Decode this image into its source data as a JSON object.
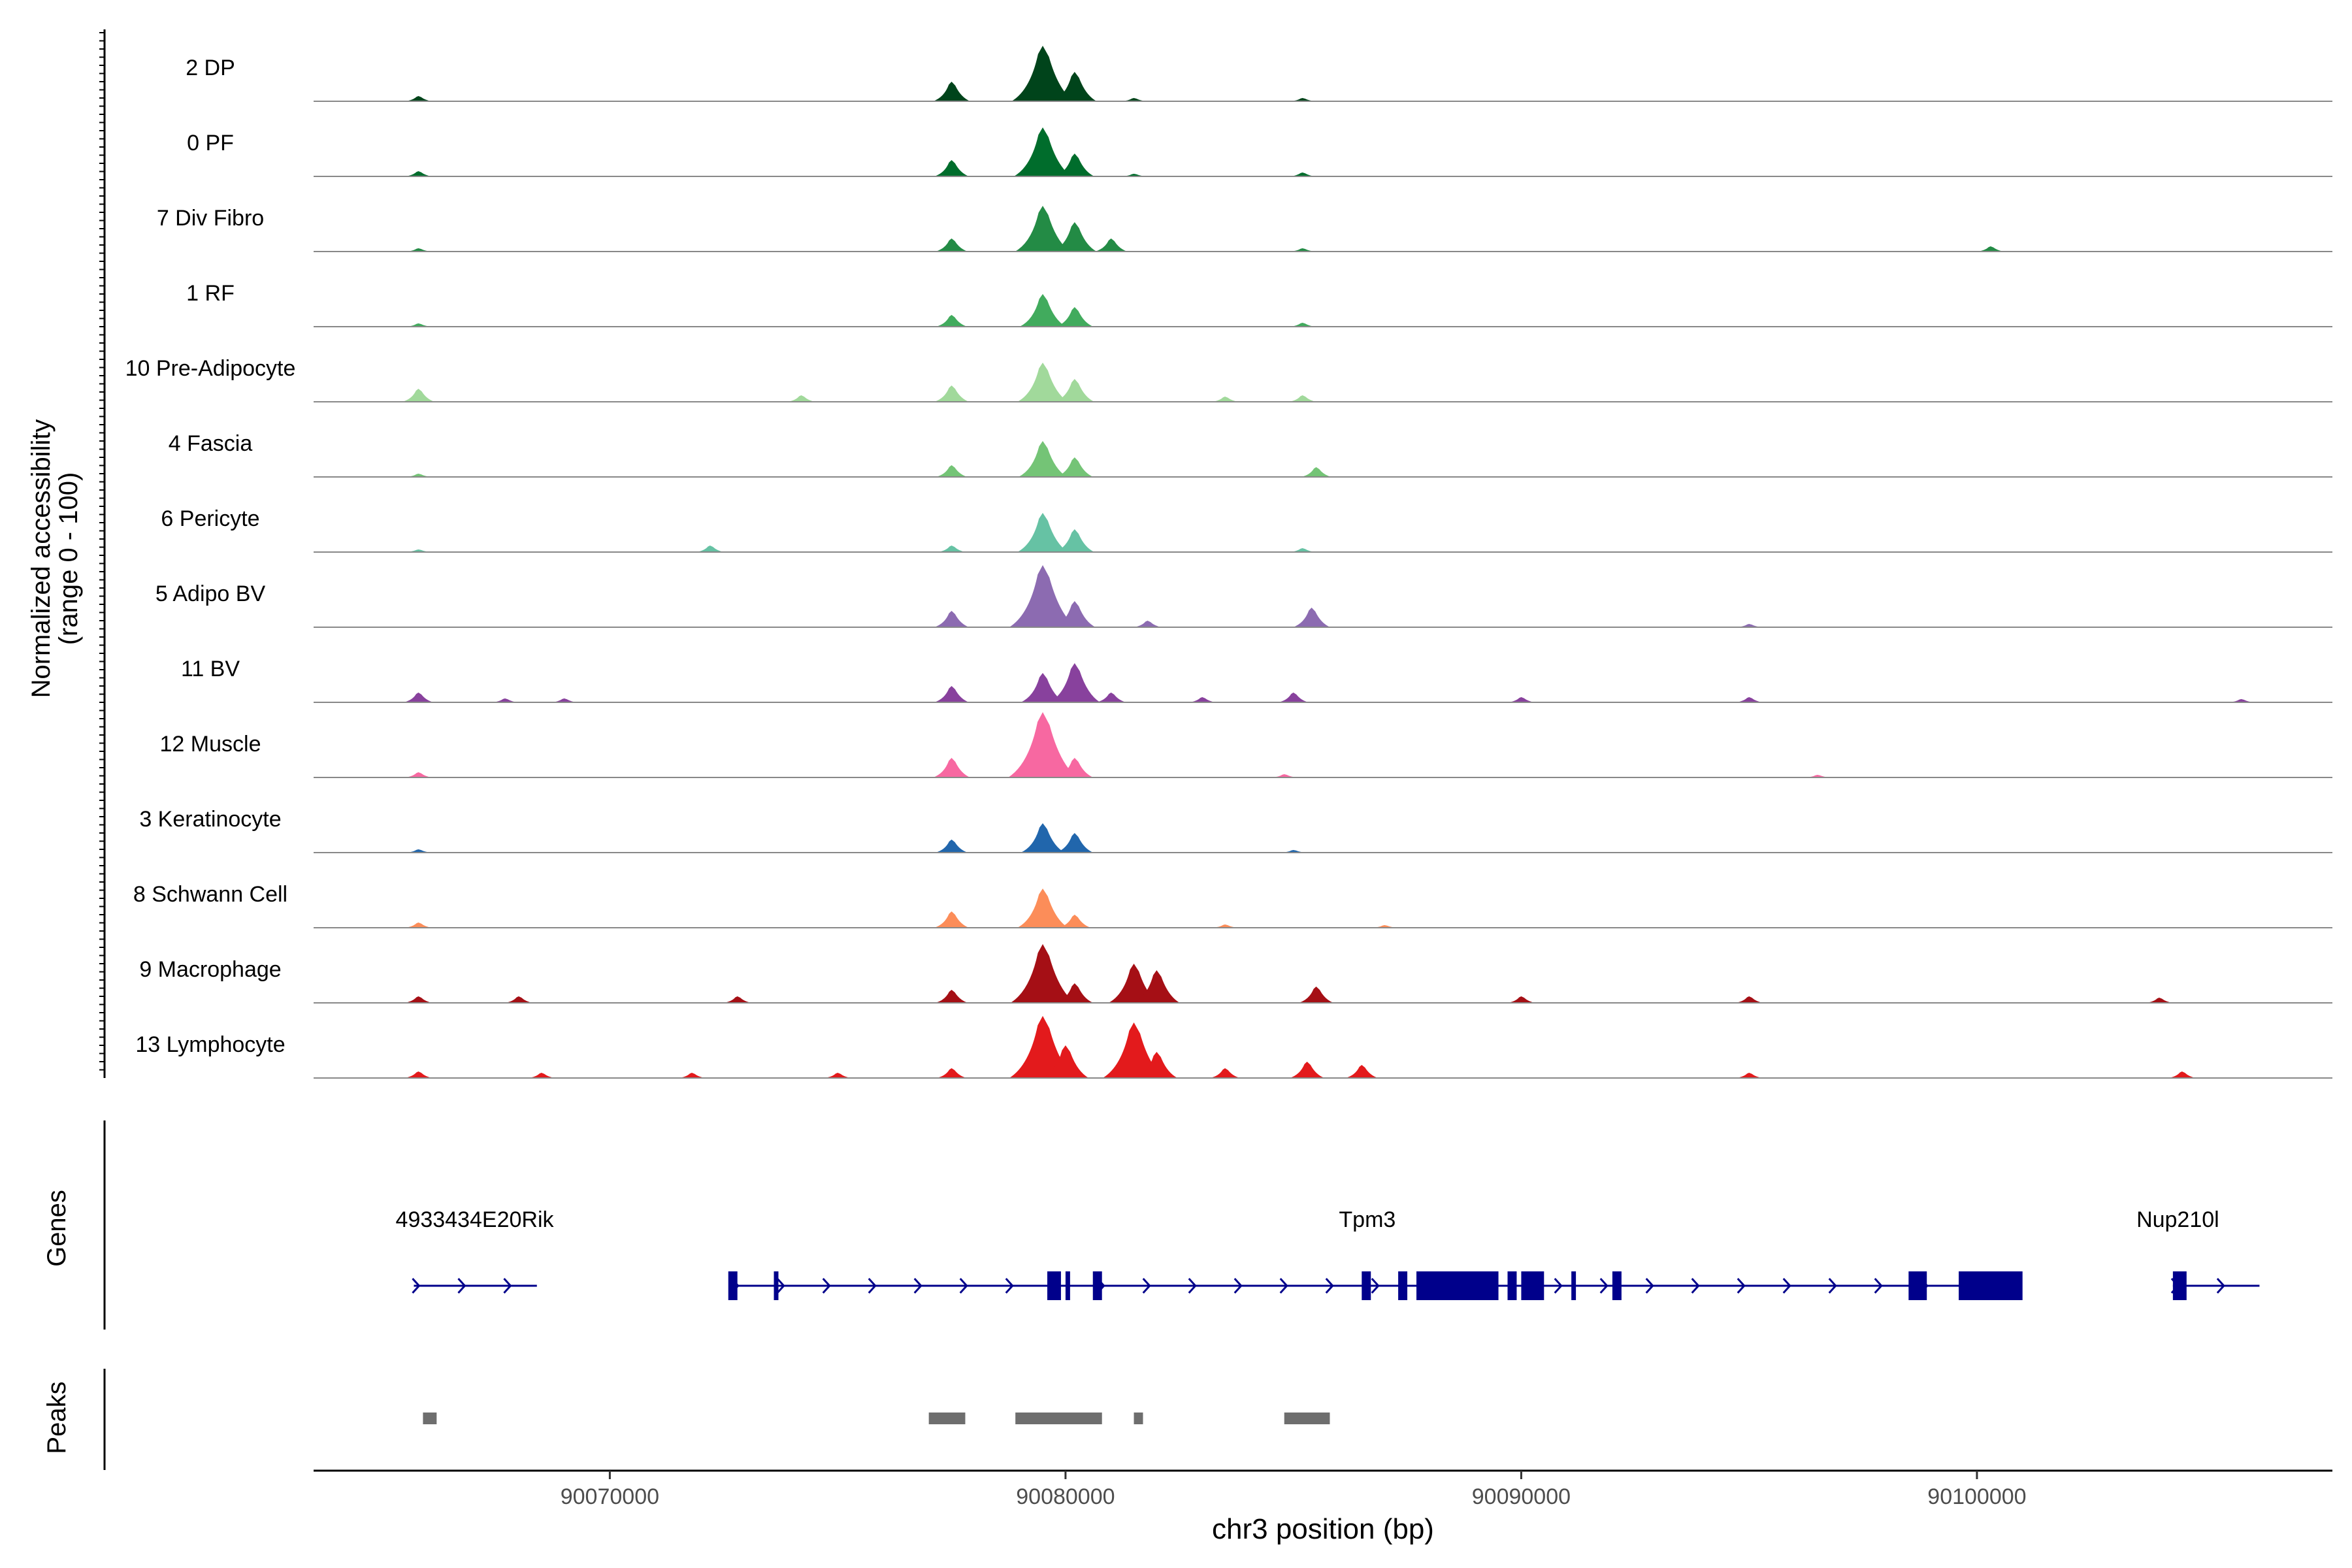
{
  "chart_data": {
    "type": "area",
    "title": "",
    "ylabel_line1": "Normalized accessibility",
    "ylabel_line2": "(range 0 - 100)",
    "xlabel": "chr3 position (bp)",
    "xlim": [
      90063500,
      90107800
    ],
    "xticks": [
      90070000,
      90080000,
      90090000,
      90100000
    ],
    "xtick_labels": [
      "90070000",
      "90080000",
      "90090000",
      "90100000"
    ],
    "ylim": [
      0,
      100
    ],
    "tracks": [
      {
        "label": "2 DP",
        "color": "#00441b",
        "peaks": [
          [
            90065800,
            8
          ],
          [
            90077500,
            30
          ],
          [
            90079500,
            85
          ],
          [
            90080200,
            45
          ],
          [
            90081500,
            5
          ],
          [
            90085200,
            5
          ]
        ]
      },
      {
        "label": "0 PF",
        "color": "#006d2c",
        "peaks": [
          [
            90065800,
            8
          ],
          [
            90077500,
            25
          ],
          [
            90079500,
            75
          ],
          [
            90080200,
            35
          ],
          [
            90081500,
            4
          ],
          [
            90085200,
            6
          ]
        ]
      },
      {
        "label": "7 Div Fibro",
        "color": "#238b45",
        "peaks": [
          [
            90065800,
            5
          ],
          [
            90077500,
            20
          ],
          [
            90079500,
            70
          ],
          [
            90080200,
            45
          ],
          [
            90081000,
            20
          ],
          [
            90085200,
            5
          ],
          [
            90100300,
            8
          ]
        ]
      },
      {
        "label": "1 RF",
        "color": "#41ab5d",
        "peaks": [
          [
            90065800,
            5
          ],
          [
            90077500,
            18
          ],
          [
            90079500,
            50
          ],
          [
            90080200,
            30
          ],
          [
            90085200,
            6
          ]
        ]
      },
      {
        "label": "10 Pre-Adipocyte",
        "color": "#a1d99b",
        "peaks": [
          [
            90065800,
            20
          ],
          [
            90074200,
            10
          ],
          [
            90077500,
            25
          ],
          [
            90079500,
            60
          ],
          [
            90080200,
            35
          ],
          [
            90083500,
            8
          ],
          [
            90085200,
            10
          ]
        ]
      },
      {
        "label": "4 Fascia",
        "color": "#74c476",
        "peaks": [
          [
            90065800,
            5
          ],
          [
            90077500,
            18
          ],
          [
            90079500,
            55
          ],
          [
            90080200,
            30
          ],
          [
            90085500,
            15
          ]
        ]
      },
      {
        "label": "6 Pericyte",
        "color": "#66c2a4",
        "peaks": [
          [
            90065800,
            4
          ],
          [
            90072200,
            10
          ],
          [
            90077500,
            10
          ],
          [
            90079500,
            60
          ],
          [
            90080200,
            35
          ],
          [
            90085200,
            6
          ]
        ]
      },
      {
        "label": "5 Adipo BV",
        "color": "#8c6bb1",
        "peaks": [
          [
            90077500,
            25
          ],
          [
            90079500,
            95
          ],
          [
            90080200,
            40
          ],
          [
            90081800,
            10
          ],
          [
            90085400,
            30
          ],
          [
            90095000,
            5
          ]
        ]
      },
      {
        "label": "11 BV",
        "color": "#88419d",
        "peaks": [
          [
            90065800,
            15
          ],
          [
            90067700,
            6
          ],
          [
            90069000,
            6
          ],
          [
            90077500,
            25
          ],
          [
            90079500,
            45
          ],
          [
            90080200,
            60
          ],
          [
            90081000,
            15
          ],
          [
            90083000,
            8
          ],
          [
            90085000,
            15
          ],
          [
            90090000,
            8
          ],
          [
            90095000,
            8
          ],
          [
            90105800,
            5
          ]
        ]
      },
      {
        "label": "12 Muscle",
        "color": "#f768a1",
        "peaks": [
          [
            90065800,
            8
          ],
          [
            90077500,
            30
          ],
          [
            90079500,
            100
          ],
          [
            90080200,
            30
          ],
          [
            90084800,
            5
          ],
          [
            90096500,
            4
          ]
        ]
      },
      {
        "label": "3 Keratinocyte",
        "color": "#2166ac",
        "peaks": [
          [
            90065800,
            5
          ],
          [
            90077500,
            20
          ],
          [
            90079500,
            45
          ],
          [
            90080200,
            30
          ],
          [
            90085000,
            4
          ]
        ]
      },
      {
        "label": "8 Schwann Cell",
        "color": "#fc8d59",
        "peaks": [
          [
            90065800,
            8
          ],
          [
            90077500,
            25
          ],
          [
            90079500,
            60
          ],
          [
            90080200,
            20
          ],
          [
            90083500,
            5
          ],
          [
            90087000,
            4
          ]
        ]
      },
      {
        "label": "9 Macrophage",
        "color": "#a50f15",
        "peaks": [
          [
            90065800,
            10
          ],
          [
            90068000,
            10
          ],
          [
            90072800,
            10
          ],
          [
            90077500,
            20
          ],
          [
            90079500,
            90
          ],
          [
            90080200,
            30
          ],
          [
            90081500,
            60
          ],
          [
            90082000,
            50
          ],
          [
            90085500,
            25
          ],
          [
            90090000,
            10
          ],
          [
            90095000,
            10
          ],
          [
            90104000,
            8
          ]
        ]
      },
      {
        "label": "13 Lymphocyte",
        "color": "#e31a1c",
        "peaks": [
          [
            90065800,
            10
          ],
          [
            90068500,
            8
          ],
          [
            90071800,
            8
          ],
          [
            90075000,
            8
          ],
          [
            90077500,
            15
          ],
          [
            90079500,
            95
          ],
          [
            90080000,
            50
          ],
          [
            90081500,
            85
          ],
          [
            90082000,
            40
          ],
          [
            90083500,
            15
          ],
          [
            90085300,
            25
          ],
          [
            90086500,
            20
          ],
          [
            90095000,
            8
          ],
          [
            90104500,
            10
          ]
        ]
      }
    ],
    "genes_label": "Genes",
    "genes": [
      {
        "name": "4933434E20Rik",
        "start": 90065700,
        "end": 90068400,
        "strand": "+",
        "label_at": 90065300,
        "exons": []
      },
      {
        "name": "Tpm3",
        "start": 90072700,
        "end": 90100900,
        "strand": "+",
        "label_at": 90086000,
        "exons": [
          [
            90072600,
            90072800
          ],
          [
            90073600,
            90073700
          ],
          [
            90079600,
            90079900
          ],
          [
            90080000,
            90080100
          ],
          [
            90080600,
            90080800
          ],
          [
            90086500,
            90086700
          ],
          [
            90087300,
            90087500
          ],
          [
            90087700,
            90089500
          ],
          [
            90089700,
            90089900
          ],
          [
            90090000,
            90090500
          ],
          [
            90091100,
            90091200
          ],
          [
            90092000,
            90092200
          ],
          [
            90098500,
            90098900
          ],
          [
            90099600,
            90101000
          ]
        ]
      },
      {
        "name": "Nup210l",
        "start": 90104300,
        "end": 90106200,
        "strand": "+",
        "label_at": 90103500,
        "exons": [
          [
            90104300,
            90104600
          ]
        ]
      }
    ],
    "peaks_label": "Peaks",
    "peak_regions": [
      [
        90065900,
        90066200
      ],
      [
        90077000,
        90077800
      ],
      [
        90078900,
        90080800
      ],
      [
        90081500,
        90081700
      ],
      [
        90084800,
        90085800
      ]
    ]
  }
}
